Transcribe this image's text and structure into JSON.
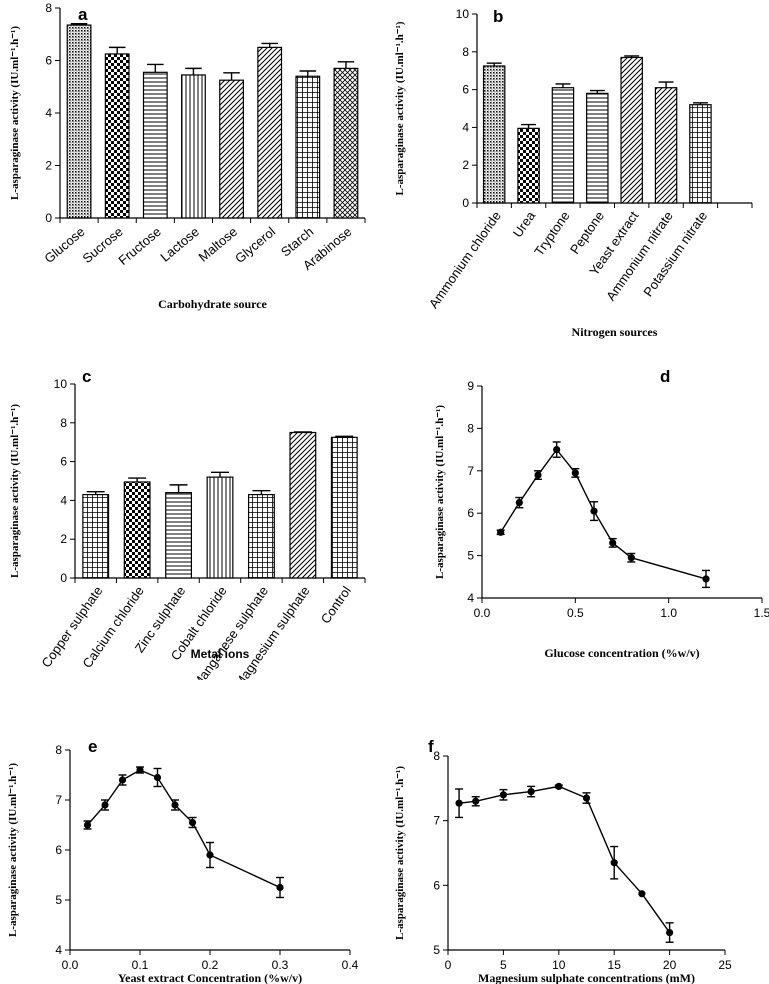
{
  "chart_data": [
    {
      "id": "a",
      "panel_label": "a",
      "type": "bar",
      "xlabel": "Carbohydrate source",
      "ylabel": "L-asparaginase activity (IU.ml⁻¹.h⁻¹)",
      "ylim": [
        0,
        8
      ],
      "yticks": [
        "0",
        "2",
        "4",
        "6",
        "8"
      ],
      "categories": [
        "Glucose",
        "Sucrose",
        "Fructose",
        "Lactose",
        "Maltose",
        "Glycerol",
        "Starch",
        "Arabinose"
      ],
      "values": [
        7.35,
        6.25,
        5.55,
        5.45,
        5.25,
        6.5,
        5.4,
        5.7
      ],
      "errors": [
        0.05,
        0.25,
        0.3,
        0.25,
        0.28,
        0.15,
        0.2,
        0.25
      ],
      "patterns": [
        "dense",
        "check",
        "hlines",
        "vlines",
        "diag",
        "diag",
        "grid",
        "crosshatch"
      ]
    },
    {
      "id": "b",
      "panel_label": "b",
      "type": "bar",
      "xlabel": "Nitrogen sources",
      "ylabel": "L-asparaginase activity (IU.ml⁻¹.h⁻¹)",
      "ylim": [
        0,
        10
      ],
      "yticks": [
        "0",
        "2",
        "4",
        "6",
        "8",
        "10"
      ],
      "categories": [
        "Ammonium chloride",
        "Urea",
        "Tryptone",
        "Peptone",
        "Yeast extract",
        "Ammonium nitrate",
        "Potassium nitrate"
      ],
      "values": [
        7.25,
        3.95,
        6.1,
        5.8,
        7.7,
        6.1,
        5.2
      ],
      "errors": [
        0.15,
        0.2,
        0.2,
        0.15,
        0.08,
        0.3,
        0.1
      ],
      "patterns": [
        "dense",
        "check",
        "hlines",
        "hlines",
        "diag",
        "diag",
        "grid"
      ]
    },
    {
      "id": "c",
      "panel_label": "c",
      "type": "bar",
      "xlabel": "Metal ions",
      "ylabel": "L-asparaginase activity (IU.ml⁻¹.h⁻¹)",
      "ylim": [
        0,
        10
      ],
      "yticks": [
        "0",
        "2",
        "4",
        "6",
        "8",
        "10"
      ],
      "categories": [
        "Copper sulphate",
        "Calcium chloride",
        "Zinc sulphate",
        "Cobalt chloride",
        "Manganese sulphate",
        "Magnesium sulphate",
        "Control"
      ],
      "values": [
        4.3,
        4.95,
        4.4,
        5.2,
        4.3,
        7.5,
        7.25
      ],
      "errors": [
        0.15,
        0.2,
        0.4,
        0.25,
        0.2,
        0.03,
        0.05
      ],
      "patterns": [
        "grid",
        "check",
        "hlines",
        "vlines",
        "grid",
        "diag",
        "grid"
      ]
    },
    {
      "id": "d",
      "panel_label": "d",
      "type": "line",
      "xlabel": "Glucose concentration (%w/v)",
      "ylabel": "L-asparaginase activity (IU.ml⁻¹.h⁻¹)",
      "xlim": [
        0,
        1.5
      ],
      "ylim": [
        4,
        9
      ],
      "xticks": [
        "0.0",
        "0.5",
        "1.0",
        "1.5"
      ],
      "yticks": [
        "4",
        "5",
        "6",
        "7",
        "8",
        "9"
      ],
      "x": [
        0.1,
        0.2,
        0.3,
        0.4,
        0.5,
        0.6,
        0.7,
        0.8,
        1.2
      ],
      "y": [
        5.55,
        6.25,
        6.9,
        7.5,
        6.95,
        6.05,
        5.3,
        4.95,
        4.45
      ],
      "errors": [
        0.05,
        0.12,
        0.1,
        0.18,
        0.1,
        0.22,
        0.1,
        0.1,
        0.2
      ]
    },
    {
      "id": "e",
      "panel_label": "e",
      "type": "line",
      "xlabel": "Yeast extract Concentration (%w/v)",
      "ylabel": "L-asparaginase activity (IU.ml⁻¹.h⁻¹)",
      "xlim": [
        0,
        0.4
      ],
      "ylim": [
        4,
        8
      ],
      "xticks": [
        "0.0",
        "0.1",
        "0.2",
        "0.3",
        "0.4"
      ],
      "yticks": [
        "4",
        "5",
        "6",
        "7",
        "8"
      ],
      "x": [
        0.025,
        0.05,
        0.075,
        0.1,
        0.125,
        0.15,
        0.175,
        0.2,
        0.3
      ],
      "y": [
        6.5,
        6.9,
        7.4,
        7.6,
        7.45,
        6.9,
        6.55,
        5.9,
        5.25
      ],
      "errors": [
        0.08,
        0.1,
        0.1,
        0.06,
        0.18,
        0.1,
        0.1,
        0.25,
        0.2
      ]
    },
    {
      "id": "f",
      "panel_label": "f",
      "type": "line",
      "xlabel": "Magnesium sulphate concentrations (mM)",
      "ylabel": "L-asparaginase activity (IU.ml⁻¹.h⁻¹)",
      "xlim": [
        0,
        25
      ],
      "ylim": [
        5,
        8
      ],
      "xticks": [
        "0",
        "5",
        "10",
        "15",
        "20",
        "25"
      ],
      "yticks": [
        "5",
        "6",
        "7",
        "8"
      ],
      "x": [
        1,
        2.5,
        5,
        7.5,
        10,
        12.5,
        15,
        17.5,
        20
      ],
      "y": [
        7.27,
        7.3,
        7.4,
        7.45,
        7.53,
        7.35,
        6.35,
        5.87,
        5.27
      ],
      "errors": [
        0.22,
        0.07,
        0.08,
        0.08,
        0.02,
        0.08,
        0.25,
        0.0,
        0.15
      ]
    }
  ]
}
